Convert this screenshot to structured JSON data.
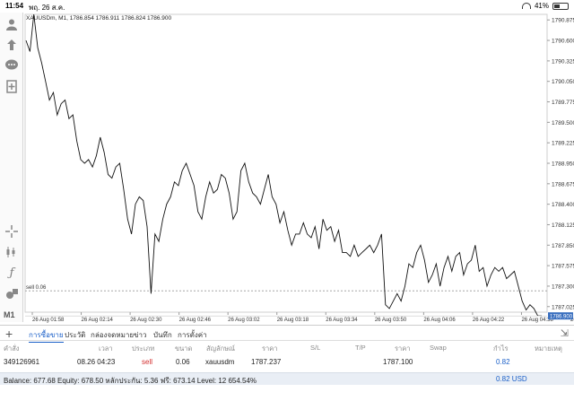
{
  "status": {
    "time": "11:54",
    "date": "พฤ. 26 ส.ค.",
    "battery": "41%",
    "battery_level": 0.41
  },
  "sidebar": {
    "icons": [
      "user-icon",
      "trade-icon",
      "chat-icon",
      "add-document-icon",
      "crosshair-icon",
      "indicators-icon",
      "function-icon",
      "objects-icon"
    ],
    "timeframe": "M1"
  },
  "chart_data": {
    "type": "line",
    "title": "XAUUSDm, M1, 1786.854 1786.911 1786.824 1786.900",
    "ylim": [
      1786.95,
      1790.95
    ],
    "yticks": [
      1790.875,
      1790.6,
      1790.325,
      1790.05,
      1789.775,
      1789.5,
      1789.225,
      1788.95,
      1788.675,
      1788.4,
      1788.125,
      1787.85,
      1787.575,
      1787.3,
      1787.025
    ],
    "xticks": [
      "26 Aug 01:58",
      "26 Aug 02:14",
      "26 Aug 02:30",
      "26 Aug 02:46",
      "26 Aug 03:02",
      "26 Aug 03:18",
      "26 Aug 03:34",
      "26 Aug 03:50",
      "26 Aug 04:06",
      "26 Aug 04:22",
      "26 Aug 04:38",
      "26 Aug 04:54"
    ],
    "grid": false,
    "current_price": 1786.9,
    "current_price_label": "1786.900",
    "order_line": {
      "price": 1787.237,
      "label": "sell 0.06"
    },
    "series": [
      {
        "values": [
          1790.6,
          1790.45,
          1790.95,
          1790.5,
          1790.3,
          1790.05,
          1789.8,
          1789.9,
          1789.6,
          1789.75,
          1789.8,
          1789.55,
          1789.6,
          1789.25,
          1789.0,
          1788.95,
          1789.0,
          1788.9,
          1789.05,
          1789.3,
          1789.1,
          1788.8,
          1788.75,
          1788.9,
          1788.95,
          1788.6,
          1788.2,
          1788.0,
          1788.4,
          1788.5,
          1788.45,
          1788.1,
          1787.2,
          1788.0,
          1787.9,
          1788.2,
          1788.4,
          1788.5,
          1788.7,
          1788.65,
          1788.85,
          1788.95,
          1788.8,
          1788.65,
          1788.3,
          1788.2,
          1788.5,
          1788.7,
          1788.55,
          1788.6,
          1788.8,
          1788.75,
          1788.55,
          1788.2,
          1788.3,
          1788.85,
          1788.95,
          1788.7,
          1788.55,
          1788.5,
          1788.4,
          1788.6,
          1788.8,
          1788.5,
          1788.4,
          1788.15,
          1788.3,
          1788.05,
          1787.85,
          1788.0,
          1788.0,
          1788.15,
          1788.0,
          1787.95,
          1788.1,
          1787.8,
          1788.2,
          1788.05,
          1788.1,
          1787.9,
          1788.05,
          1787.75,
          1787.75,
          1787.7,
          1787.85,
          1787.7,
          1787.75,
          1787.8,
          1787.85,
          1787.75,
          1787.85,
          1788.0,
          1787.05,
          1787.0,
          1787.1,
          1787.2,
          1787.1,
          1787.3,
          1787.6,
          1787.55,
          1787.75,
          1787.85,
          1787.65,
          1787.35,
          1787.45,
          1787.6,
          1787.3,
          1787.55,
          1787.7,
          1787.5,
          1787.7,
          1787.75,
          1787.45,
          1787.6,
          1787.65,
          1787.85,
          1787.5,
          1787.55,
          1787.3,
          1787.45,
          1787.55,
          1787.5,
          1787.55,
          1787.4,
          1787.45,
          1787.5,
          1787.3,
          1787.1,
          1786.98,
          1787.05,
          1787.0,
          1786.9,
          1786.9
        ]
      }
    ]
  },
  "tabs": {
    "items": [
      {
        "label": "การซื้อขาย",
        "active": true
      },
      {
        "label": "ประวัติ",
        "active": false
      },
      {
        "label": "กล่องจดหมาย",
        "active": false
      },
      {
        "label": "ข่าว",
        "active": false
      },
      {
        "label": "บันทึก",
        "active": false
      },
      {
        "label": "การตั้งค่า",
        "active": false
      }
    ]
  },
  "table": {
    "headers": [
      "คำสั่ง",
      "เวลา",
      "ประเภท",
      "ขนาด",
      "สัญลักษณ์",
      "ราคา",
      "S/L",
      "T/P",
      "ราคา",
      "Swap",
      "กำไร",
      "หมายเหตุ"
    ],
    "row": {
      "order": "349126961",
      "time": "08.26 04:23",
      "type": "sell",
      "size": "0.06",
      "symbol": "xauusdm",
      "price": "1787.237",
      "sl": "",
      "tp": "",
      "current_price": "1787.100",
      "swap": "",
      "profit": "0.82",
      "note": ""
    }
  },
  "balance": {
    "text": "Balance: 677.68 Equity: 678.50 หลักประกัน: 5.36 ฟรี: 673.14 Level: 12 654.54%",
    "total": "0.82  USD"
  }
}
